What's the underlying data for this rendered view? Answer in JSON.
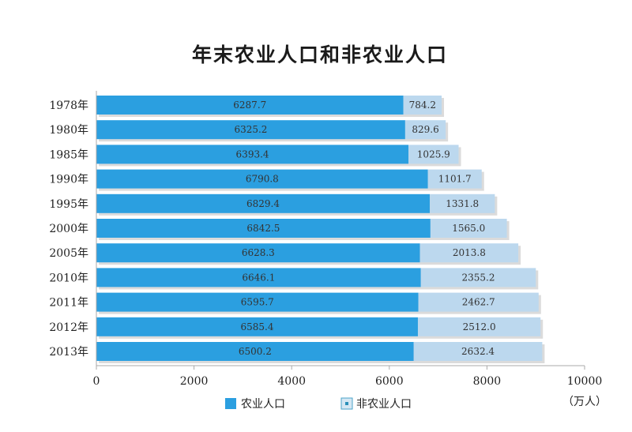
{
  "chart_data": {
    "type": "bar",
    "orientation": "horizontal",
    "stacked": true,
    "title": "年末农业人口和非农业人口",
    "unit_label": "（万人）",
    "categories": [
      "1978年",
      "1980年",
      "1985年",
      "1990年",
      "1995年",
      "2000年",
      "2005年",
      "2010年",
      "2011年",
      "2012年",
      "2013年"
    ],
    "series": [
      {
        "name": "农业人口",
        "color": "#2b9fe0",
        "values": [
          6287.7,
          6325.2,
          6393.4,
          6790.8,
          6829.4,
          6842.5,
          6628.3,
          6646.1,
          6595.7,
          6585.4,
          6500.2
        ],
        "labels": [
          "6287.7",
          "6325.2",
          "6393.4",
          "6790.8",
          "6829.4",
          "6842.5",
          "6628.3",
          "6646.1",
          "6595.7",
          "6585.4",
          "6500.2"
        ]
      },
      {
        "name": "非农业人口",
        "color": "#bcd8ee",
        "values": [
          784.2,
          829.6,
          1025.9,
          1101.7,
          1331.8,
          1565.0,
          2013.8,
          2355.2,
          2462.7,
          2512.0,
          2632.4
        ],
        "labels": [
          "784.2",
          "829.6",
          "1025.9",
          "1101.7",
          "1331.8",
          "1565.0",
          "2013.8",
          "2355.2",
          "2462.7",
          "2512.0",
          "2632.4"
        ]
      }
    ],
    "xlim": [
      0,
      10000
    ],
    "xticks": [
      "0",
      "2000",
      "4000",
      "6000",
      "8000",
      "10000"
    ],
    "grid": false,
    "legend_position": "bottom"
  }
}
